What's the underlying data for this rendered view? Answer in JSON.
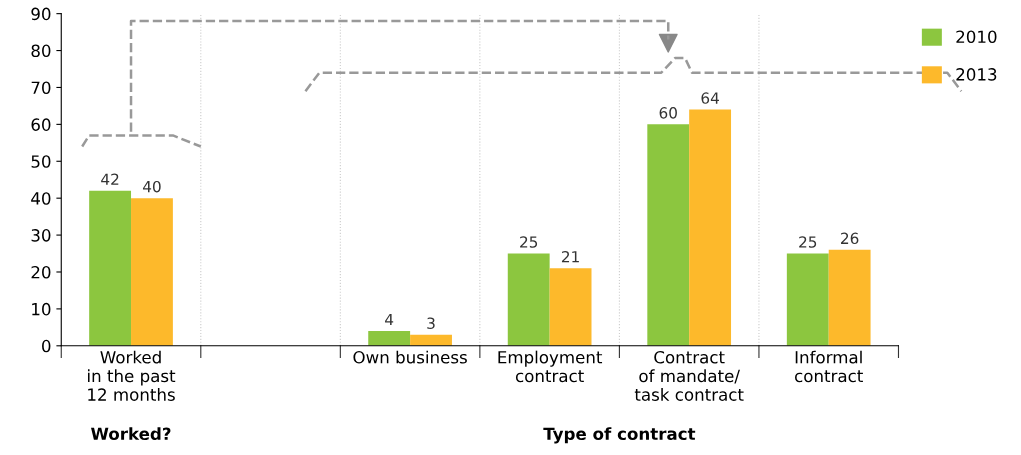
{
  "chart_data": {
    "type": "bar",
    "categories": [
      "Worked\nin the past\n12 months",
      null,
      "Own business",
      "Employment\ncontract",
      "Contract\nof mandate/\ntask contract",
      "Informal\ncontract"
    ],
    "series": [
      {
        "name": "2010",
        "color": "#8cc63f",
        "values": [
          42,
          null,
          4,
          25,
          60,
          25
        ]
      },
      {
        "name": "2013",
        "color": "#fdb92b",
        "values": [
          40,
          null,
          3,
          21,
          64,
          26
        ]
      }
    ],
    "ylim": [
      0,
      90
    ],
    "yticks": [
      0,
      10,
      20,
      30,
      40,
      50,
      60,
      70,
      80,
      90
    ],
    "grid": "x",
    "legend": "top right",
    "data_labels": true,
    "annotations": [
      "Worked?",
      "Type of contract"
    ]
  }
}
